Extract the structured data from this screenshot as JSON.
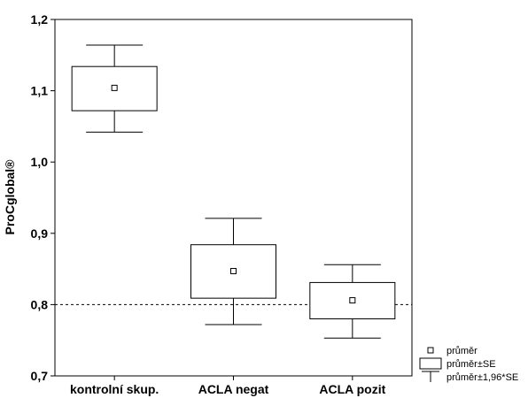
{
  "chart_data": {
    "type": "box",
    "title": "",
    "xlabel": "",
    "ylabel": "ProCglobal®",
    "ylim": [
      0.7,
      1.2
    ],
    "y_ticks": [
      "0,7",
      "0,8",
      "0,9",
      "1,0",
      "1,1",
      "1,2"
    ],
    "y_tick_values": [
      0.7,
      0.8,
      0.9,
      1.0,
      1.1,
      1.2
    ],
    "categories": [
      "kontrolní skup.",
      "ACLA negat",
      "ACLA pozit"
    ],
    "groups": [
      {
        "category": "kontrolní skup.",
        "mean": 1.104,
        "se_low": 1.072,
        "se_high": 1.134,
        "ci_low": 1.042,
        "ci_high": 1.164
      },
      {
        "category": "ACLA negat",
        "mean": 0.847,
        "se_low": 0.809,
        "se_high": 0.884,
        "ci_low": 0.772,
        "ci_high": 0.921
      },
      {
        "category": "ACLA pozit",
        "mean": 0.806,
        "se_low": 0.78,
        "se_high": 0.831,
        "ci_low": 0.753,
        "ci_high": 0.856
      }
    ],
    "reference_line": {
      "y": 0.8,
      "style": "dashed"
    },
    "legend": {
      "placement": "bottom-right",
      "entries": [
        {
          "symbol": "mean-marker",
          "label": "průměr"
        },
        {
          "symbol": "box",
          "label": "průměr±SE"
        },
        {
          "symbol": "whisker",
          "label": "průměr±1,96*SE"
        }
      ]
    },
    "grid": false,
    "colors": {
      "stroke": "#000000",
      "background": "#ffffff"
    }
  }
}
